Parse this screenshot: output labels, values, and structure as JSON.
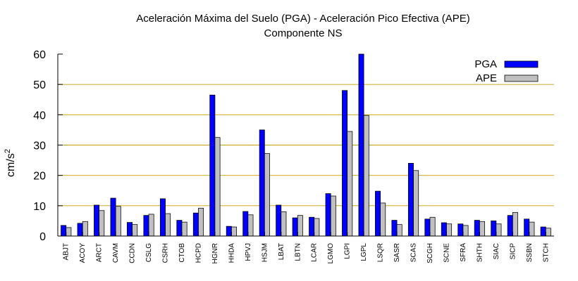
{
  "chart_data": {
    "type": "bar",
    "title": "Aceleración Máxima del Suelo (PGA) -  Aceleración Pico Efectiva (APE)",
    "subtitle": "Componente NS",
    "xlabel": "",
    "ylabel": "cm/s",
    "ylabel_superscript": "2",
    "ylim": [
      0,
      60
    ],
    "yticks": [
      0,
      10,
      20,
      30,
      40,
      50,
      60
    ],
    "grid": "horizontal",
    "legend": "top-right",
    "categories": [
      "ABJT",
      "ACOY",
      "ARCT",
      "CAVM",
      "CCDN",
      "CSLG",
      "CSRH",
      "CTOB",
      "HCPD",
      "HGNR",
      "HHDA",
      "HPVJ",
      "HSJM",
      "LBAT",
      "LBTN",
      "LCAR",
      "LGMO",
      "LGPI",
      "LGPL",
      "LSQR",
      "SASR",
      "SCAS",
      "SCGH",
      "SCNE",
      "SFRA",
      "SHTH",
      "SIAC",
      "SICP",
      "SSBN",
      "STCH"
    ],
    "series": [
      {
        "name": "PGA",
        "color": "#0000ff",
        "values": [
          3.5,
          4.2,
          10.2,
          12.5,
          4.5,
          6.8,
          12.3,
          5.2,
          7.6,
          46.5,
          3.2,
          8.1,
          35.0,
          10.2,
          6.0,
          6.2,
          14.0,
          48.0,
          60.0,
          14.8,
          5.2,
          24.0,
          5.6,
          4.4,
          4.0,
          5.2,
          5.0,
          6.8,
          5.6,
          3.0
        ]
      },
      {
        "name": "APE",
        "color": "#c0c0c0",
        "values": [
          2.8,
          4.8,
          8.4,
          9.8,
          3.8,
          7.2,
          7.4,
          4.6,
          9.2,
          32.5,
          3.0,
          7.0,
          27.2,
          8.0,
          6.8,
          5.8,
          13.2,
          34.5,
          39.8,
          10.9,
          3.8,
          21.6,
          6.2,
          4.0,
          3.5,
          4.8,
          4.0,
          7.8,
          4.6,
          2.6
        ]
      }
    ]
  }
}
